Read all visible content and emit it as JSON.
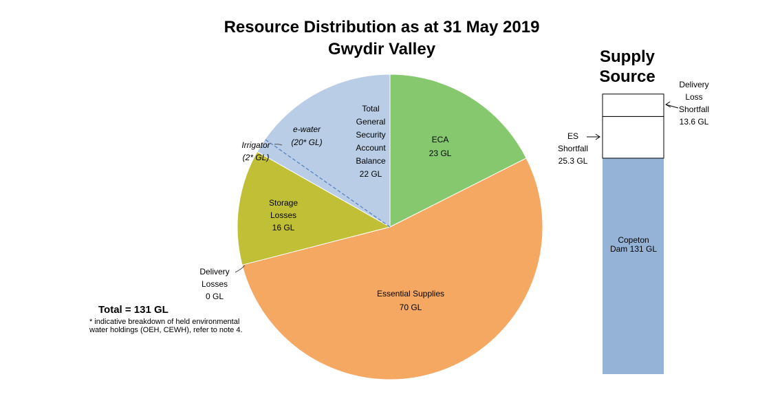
{
  "title_line1": "Resource Distribution as at 31 May 2019",
  "title_line2": "Gwydir Valley",
  "total_label": "Total = 131 GL",
  "footnote": "* indicative breakdown of held environmental water holdings (OEH, CEWH), refer to note 4.",
  "supply_title_line1": "Supply",
  "supply_title_line2": "Source",
  "chart_data": [
    {
      "type": "pie",
      "title": "Resource Distribution as at 31 May 2019",
      "subtitle": "Gwydir Valley",
      "unit": "GL",
      "slices": [
        {
          "name": "ECA",
          "value": 23,
          "value_label": "23 GL",
          "color": "#86c86e"
        },
        {
          "name": "Essential Supplies",
          "value": 70,
          "value_label": "70 GL",
          "color": "#f5a862"
        },
        {
          "name": "Delivery Losses",
          "value": 0,
          "value_label": "0 GL",
          "color": "#d9d9d9"
        },
        {
          "name": "Storage Losses",
          "value": 16,
          "value_label": "16 GL",
          "color": "#c1bf35"
        },
        {
          "name": "Total General Security Account Balance",
          "value": 22,
          "value_label": "22 GL",
          "color": "#b9cde6",
          "breakdown": [
            {
              "name": "Irrigator",
              "value": 2,
              "value_label": "(2* GL)"
            },
            {
              "name": "e-water",
              "value": 20,
              "value_label": "(20* GL)"
            }
          ]
        }
      ]
    },
    {
      "type": "bar",
      "title": "Supply Source",
      "unit": "GL",
      "segments": [
        {
          "name": "Copeton Dam",
          "value": 131,
          "label": "Copeton Dam 131 GL",
          "color": "#95b3d7"
        },
        {
          "name": "ES Shortfall",
          "value": 25.3,
          "label_lines": [
            "ES",
            "Shortfall",
            "25.3 GL"
          ],
          "color": "#ffffff"
        },
        {
          "name": "Delivery Loss Shortfall",
          "value": 13.6,
          "label_lines": [
            "Delivery",
            "Loss",
            "Shortfall",
            "13.6 GL"
          ],
          "color": "#ffffff"
        }
      ]
    }
  ],
  "labels": {
    "eca": [
      "ECA",
      "23 GL"
    ],
    "essential": [
      "Essential Supplies",
      "70 GL"
    ],
    "storage": [
      "Storage",
      "Losses",
      "16 GL"
    ],
    "gs": [
      "Total",
      "General",
      "Security",
      "Account",
      "Balance",
      "22 GL"
    ],
    "ewater": [
      "e-water",
      "(20* GL)"
    ],
    "irrigator": [
      "Irrigator",
      "(2* GL)"
    ],
    "delivery": [
      "Delivery",
      "Losses",
      "0 GL"
    ],
    "copeton": [
      "Copeton",
      "Dam  131 GL"
    ],
    "es_shortfall": [
      "ES",
      "Shortfall",
      "25.3 GL"
    ],
    "dl_shortfall": [
      "Delivery",
      "Loss",
      "Shortfall",
      "13.6 GL"
    ]
  }
}
